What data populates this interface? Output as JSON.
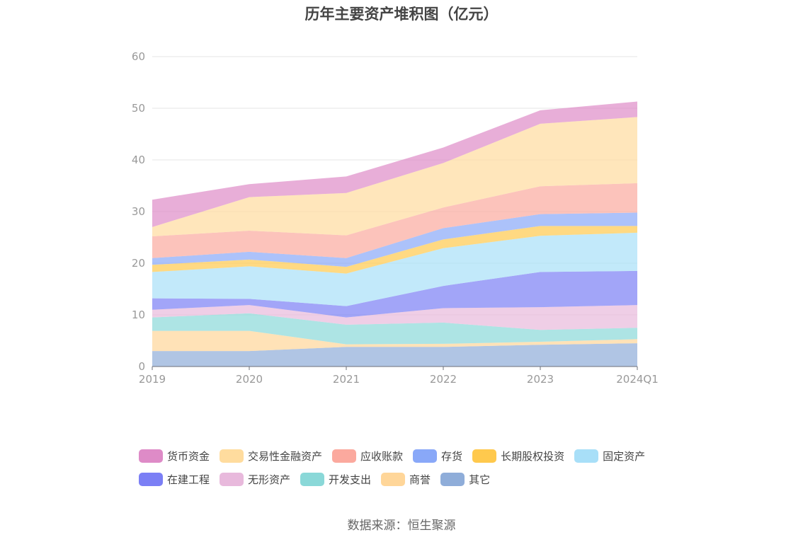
{
  "chart_data": {
    "type": "area",
    "stacked": true,
    "title": "历年主要资产堆积图（亿元）",
    "categories": [
      "2019",
      "2020",
      "2021",
      "2022",
      "2023",
      "2024Q1"
    ],
    "ylim": [
      0,
      60
    ],
    "yticks": [
      0,
      10,
      20,
      30,
      40,
      50,
      60
    ],
    "grid": true,
    "legend_position": "bottom",
    "series": [
      {
        "name": "其它",
        "color": "#8fadd9",
        "values": [
          3.0,
          3.0,
          3.8,
          3.8,
          4.2,
          4.5
        ]
      },
      {
        "name": "商誉",
        "color": "#ffd699",
        "values": [
          3.9,
          3.9,
          0.5,
          0.6,
          0.6,
          0.8
        ]
      },
      {
        "name": "开发支出",
        "color": "#8ad8d8",
        "values": [
          2.6,
          3.4,
          3.8,
          4.1,
          2.3,
          2.2
        ]
      },
      {
        "name": "无形资产",
        "color": "#e8b9dc",
        "values": [
          1.5,
          1.6,
          1.4,
          2.8,
          4.4,
          4.4
        ]
      },
      {
        "name": "在建工程",
        "color": "#7b7ff5",
        "values": [
          2.2,
          1.2,
          2.2,
          4.3,
          6.8,
          6.6
        ]
      },
      {
        "name": "固定资产",
        "color": "#a8dff8",
        "values": [
          5.1,
          6.3,
          6.3,
          7.3,
          7.0,
          7.4
        ]
      },
      {
        "name": "长期股权投资",
        "color": "#ffc94d",
        "values": [
          1.4,
          1.3,
          1.3,
          1.7,
          1.9,
          1.3
        ]
      },
      {
        "name": "存货",
        "color": "#89a8f8",
        "values": [
          1.3,
          1.5,
          1.7,
          2.2,
          2.3,
          2.6
        ]
      },
      {
        "name": "应收账款",
        "color": "#fba99e",
        "values": [
          4.2,
          4.1,
          4.4,
          4.0,
          5.4,
          5.7
        ]
      },
      {
        "name": "交易性金融资产",
        "color": "#ffdc9e",
        "values": [
          1.8,
          6.5,
          8.2,
          8.6,
          12.1,
          12.8
        ]
      },
      {
        "name": "货币资金",
        "color": "#de8bc7",
        "values": [
          5.3,
          2.5,
          3.2,
          3.0,
          2.6,
          3.0
        ]
      }
    ]
  },
  "legend_order": [
    "货币资金",
    "交易性金融资产",
    "应收账款",
    "存货",
    "长期股权投资",
    "固定资产",
    "在建工程",
    "无形资产",
    "开发支出",
    "商誉",
    "其它"
  ],
  "source": "数据来源：恒生聚源"
}
